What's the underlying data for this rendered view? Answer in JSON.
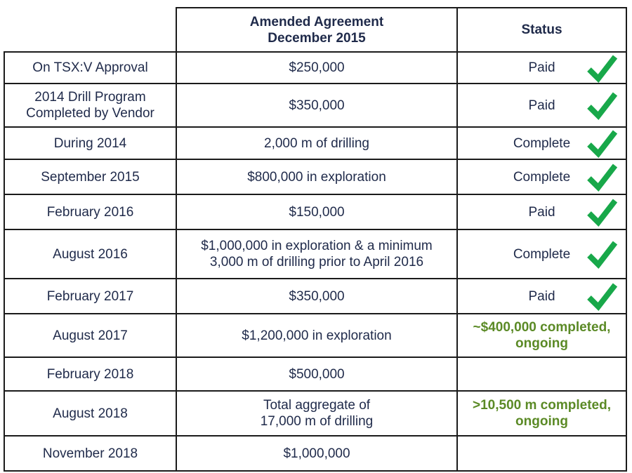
{
  "header": {
    "col1": "",
    "col2_line1": "Amended Agreement",
    "col2_line2": "December 2015",
    "col3": "Status"
  },
  "colors": {
    "check": "#18a84a",
    "status_green": "#5b8a26",
    "text": "#1f2a4a"
  },
  "rows": [
    {
      "date": "On TSX:V Approval",
      "term": "$250,000",
      "status": "Paid",
      "check": true
    },
    {
      "date": "2014 Drill Program Completed by Vendor",
      "term": "$350,000",
      "status": "Paid",
      "check": true
    },
    {
      "date": "During 2014",
      "term": "2,000 m of drilling",
      "status": "Complete",
      "check": true
    },
    {
      "date": "September 2015",
      "term": "$800,000 in exploration",
      "status": "Complete",
      "check": true
    },
    {
      "date": "February 2016",
      "term": "$150,000",
      "status": "Paid",
      "check": true
    },
    {
      "date": "August 2016",
      "term": "$1,000,000 in exploration & a minimum 3,000 m of drilling prior to April 2016",
      "status": "Complete",
      "check": true
    },
    {
      "date": "February 2017",
      "term": "$350,000",
      "status": "Paid",
      "check": true
    },
    {
      "date": "August 2017",
      "term": "$1,200,000 in exploration",
      "status": "~$400,000 completed, ongoing",
      "check": false
    },
    {
      "date": "February 2018",
      "term": "$500,000",
      "status": "",
      "check": false
    },
    {
      "date": "August 2018",
      "term": "Total aggregate of 17,000 m of drilling",
      "status": ">10,500 m completed, ongoing",
      "check": false
    },
    {
      "date": "November 2018",
      "term": "$1,000,000",
      "status": "",
      "check": false
    }
  ]
}
